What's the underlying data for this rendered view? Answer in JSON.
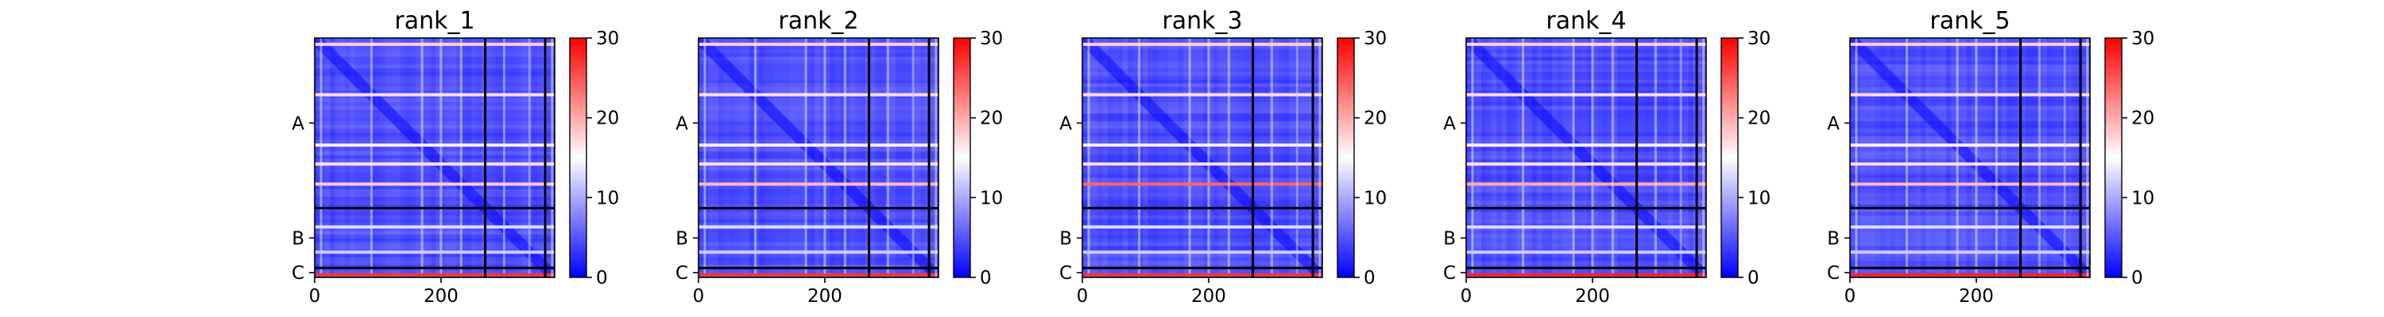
{
  "chart_data": [
    {
      "type": "heatmap",
      "title": "rank_1",
      "xticks": [
        0,
        200
      ],
      "xlim": [
        0,
        380
      ],
      "chains": [
        {
          "label": "A",
          "start": 0,
          "end": 270
        },
        {
          "label": "B",
          "start": 270,
          "end": 365
        },
        {
          "label": "C",
          "start": 365,
          "end": 380
        }
      ],
      "colorbar": {
        "min": 0,
        "max": 30,
        "ticks": [
          0,
          10,
          20,
          30
        ],
        "colors": [
          "#0000ff",
          "#ffffff",
          "#ff0000"
        ]
      },
      "bright_rows": [
        {
          "pos": 10,
          "value": 18
        },
        {
          "pos": 90,
          "value": 17
        },
        {
          "pos": 170,
          "value": 16
        },
        {
          "pos": 200,
          "value": 17
        },
        {
          "pos": 232,
          "value": 18
        },
        {
          "pos": 300,
          "value": 13
        },
        {
          "pos": 340,
          "value": 12
        },
        {
          "pos": 376,
          "value": 27
        }
      ]
    },
    {
      "type": "heatmap",
      "title": "rank_2",
      "xticks": [
        0,
        200
      ],
      "xlim": [
        0,
        380
      ],
      "chains": [
        {
          "label": "A",
          "start": 0,
          "end": 270
        },
        {
          "label": "B",
          "start": 270,
          "end": 365
        },
        {
          "label": "C",
          "start": 365,
          "end": 380
        }
      ],
      "colorbar": {
        "min": 0,
        "max": 30,
        "ticks": [
          0,
          10,
          20,
          30
        ],
        "colors": [
          "#0000ff",
          "#ffffff",
          "#ff0000"
        ]
      },
      "bright_rows": [
        {
          "pos": 10,
          "value": 18
        },
        {
          "pos": 90,
          "value": 17
        },
        {
          "pos": 170,
          "value": 16
        },
        {
          "pos": 200,
          "value": 17
        },
        {
          "pos": 232,
          "value": 19
        },
        {
          "pos": 300,
          "value": 13
        },
        {
          "pos": 340,
          "value": 12
        },
        {
          "pos": 376,
          "value": 27
        }
      ]
    },
    {
      "type": "heatmap",
      "title": "rank_3",
      "xticks": [
        0,
        200
      ],
      "xlim": [
        0,
        380
      ],
      "chains": [
        {
          "label": "A",
          "start": 0,
          "end": 270
        },
        {
          "label": "B",
          "start": 270,
          "end": 365
        },
        {
          "label": "C",
          "start": 365,
          "end": 380
        }
      ],
      "colorbar": {
        "min": 0,
        "max": 30,
        "ticks": [
          0,
          10,
          20,
          30
        ],
        "colors": [
          "#0000ff",
          "#ffffff",
          "#ff0000"
        ]
      },
      "bright_rows": [
        {
          "pos": 10,
          "value": 18
        },
        {
          "pos": 90,
          "value": 17
        },
        {
          "pos": 170,
          "value": 16
        },
        {
          "pos": 200,
          "value": 17
        },
        {
          "pos": 232,
          "value": 24
        },
        {
          "pos": 300,
          "value": 13
        },
        {
          "pos": 340,
          "value": 12
        },
        {
          "pos": 376,
          "value": 27
        }
      ]
    },
    {
      "type": "heatmap",
      "title": "rank_4",
      "xticks": [
        0,
        200
      ],
      "xlim": [
        0,
        380
      ],
      "chains": [
        {
          "label": "A",
          "start": 0,
          "end": 270
        },
        {
          "label": "B",
          "start": 270,
          "end": 365
        },
        {
          "label": "C",
          "start": 365,
          "end": 380
        }
      ],
      "colorbar": {
        "min": 0,
        "max": 30,
        "ticks": [
          0,
          10,
          20,
          30
        ],
        "colors": [
          "#0000ff",
          "#ffffff",
          "#ff0000"
        ]
      },
      "bright_rows": [
        {
          "pos": 10,
          "value": 18
        },
        {
          "pos": 90,
          "value": 17
        },
        {
          "pos": 170,
          "value": 16
        },
        {
          "pos": 200,
          "value": 17
        },
        {
          "pos": 232,
          "value": 20
        },
        {
          "pos": 300,
          "value": 13
        },
        {
          "pos": 340,
          "value": 12
        },
        {
          "pos": 376,
          "value": 28
        }
      ]
    },
    {
      "type": "heatmap",
      "title": "rank_5",
      "xticks": [
        0,
        200
      ],
      "xlim": [
        0,
        380
      ],
      "chains": [
        {
          "label": "A",
          "start": 0,
          "end": 270
        },
        {
          "label": "B",
          "start": 270,
          "end": 365
        },
        {
          "label": "C",
          "start": 365,
          "end": 380
        }
      ],
      "colorbar": {
        "min": 0,
        "max": 30,
        "ticks": [
          0,
          10,
          20,
          30
        ],
        "colors": [
          "#0000ff",
          "#ffffff",
          "#ff0000"
        ]
      },
      "bright_rows": [
        {
          "pos": 10,
          "value": 18
        },
        {
          "pos": 90,
          "value": 17
        },
        {
          "pos": 170,
          "value": 16
        },
        {
          "pos": 200,
          "value": 17
        },
        {
          "pos": 232,
          "value": 19
        },
        {
          "pos": 300,
          "value": 13
        },
        {
          "pos": 340,
          "value": 12
        },
        {
          "pos": 376,
          "value": 28
        }
      ]
    }
  ]
}
